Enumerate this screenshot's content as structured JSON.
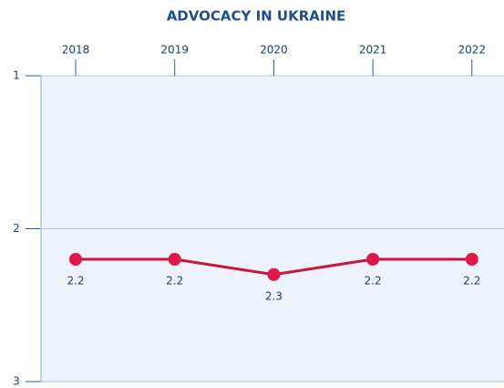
{
  "chart_data": {
    "type": "line",
    "title": "ADVOCACY IN UKRAINE",
    "categories": [
      "2018",
      "2019",
      "2020",
      "2021",
      "2022"
    ],
    "series": [
      {
        "name": "Advocacy",
        "color": "#c8173f",
        "values": [
          2.2,
          2.2,
          2.3,
          2.2,
          2.2
        ]
      }
    ],
    "ylim": [
      1,
      3
    ],
    "yticks": [
      1,
      2,
      3
    ],
    "y_inverted": true,
    "grid": true,
    "x_axis_position": "top"
  }
}
